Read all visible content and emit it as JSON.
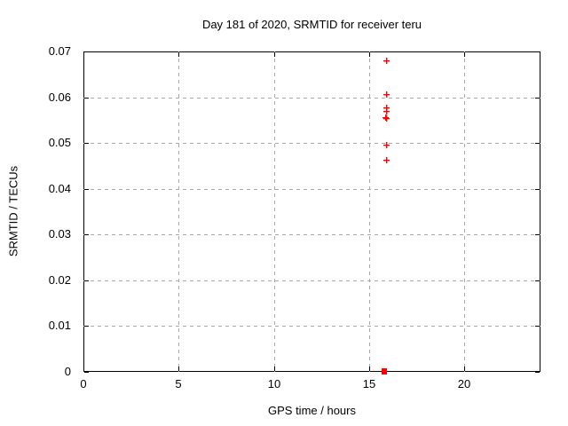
{
  "chart_data": {
    "type": "scatter",
    "title": "Day 181 of 2020, SRMTID for receiver teru",
    "xlabel": "GPS time / hours",
    "ylabel": "SRMTID / TECUs",
    "xlim": [
      0,
      24
    ],
    "ylim": [
      0,
      0.07
    ],
    "grid": true,
    "legend": "none",
    "grid_color": "#a8a8a8",
    "marker_color": "#ff0000",
    "x_ticks": [
      {
        "v": 0,
        "label": "0"
      },
      {
        "v": 5,
        "label": "5"
      },
      {
        "v": 10,
        "label": "10"
      },
      {
        "v": 15,
        "label": "15"
      },
      {
        "v": 20,
        "label": "20"
      }
    ],
    "y_ticks": [
      {
        "v": 0,
        "label": "0"
      },
      {
        "v": 0.01,
        "label": "0.01"
      },
      {
        "v": 0.02,
        "label": "0.02"
      },
      {
        "v": 0.03,
        "label": "0.03"
      },
      {
        "v": 0.04,
        "label": "0.04"
      },
      {
        "v": 0.05,
        "label": "0.05"
      },
      {
        "v": 0.06,
        "label": "0.06"
      },
      {
        "v": 0.07,
        "label": "0.07"
      }
    ],
    "series": [
      {
        "name": "SRMTID",
        "points": [
          {
            "x": 15.9,
            "y": 0.068,
            "marker": "plus"
          },
          {
            "x": 15.9,
            "y": 0.0605,
            "marker": "plus"
          },
          {
            "x": 15.9,
            "y": 0.0577,
            "marker": "plus"
          },
          {
            "x": 15.9,
            "y": 0.0569,
            "marker": "plus"
          },
          {
            "x": 15.86,
            "y": 0.0556,
            "marker": "plus"
          },
          {
            "x": 15.9,
            "y": 0.0553,
            "marker": "plus"
          },
          {
            "x": 15.9,
            "y": 0.0496,
            "marker": "plus"
          },
          {
            "x": 15.9,
            "y": 0.0463,
            "marker": "plus"
          },
          {
            "x": 15.78,
            "y": 0.0,
            "marker": "square"
          }
        ]
      }
    ]
  }
}
